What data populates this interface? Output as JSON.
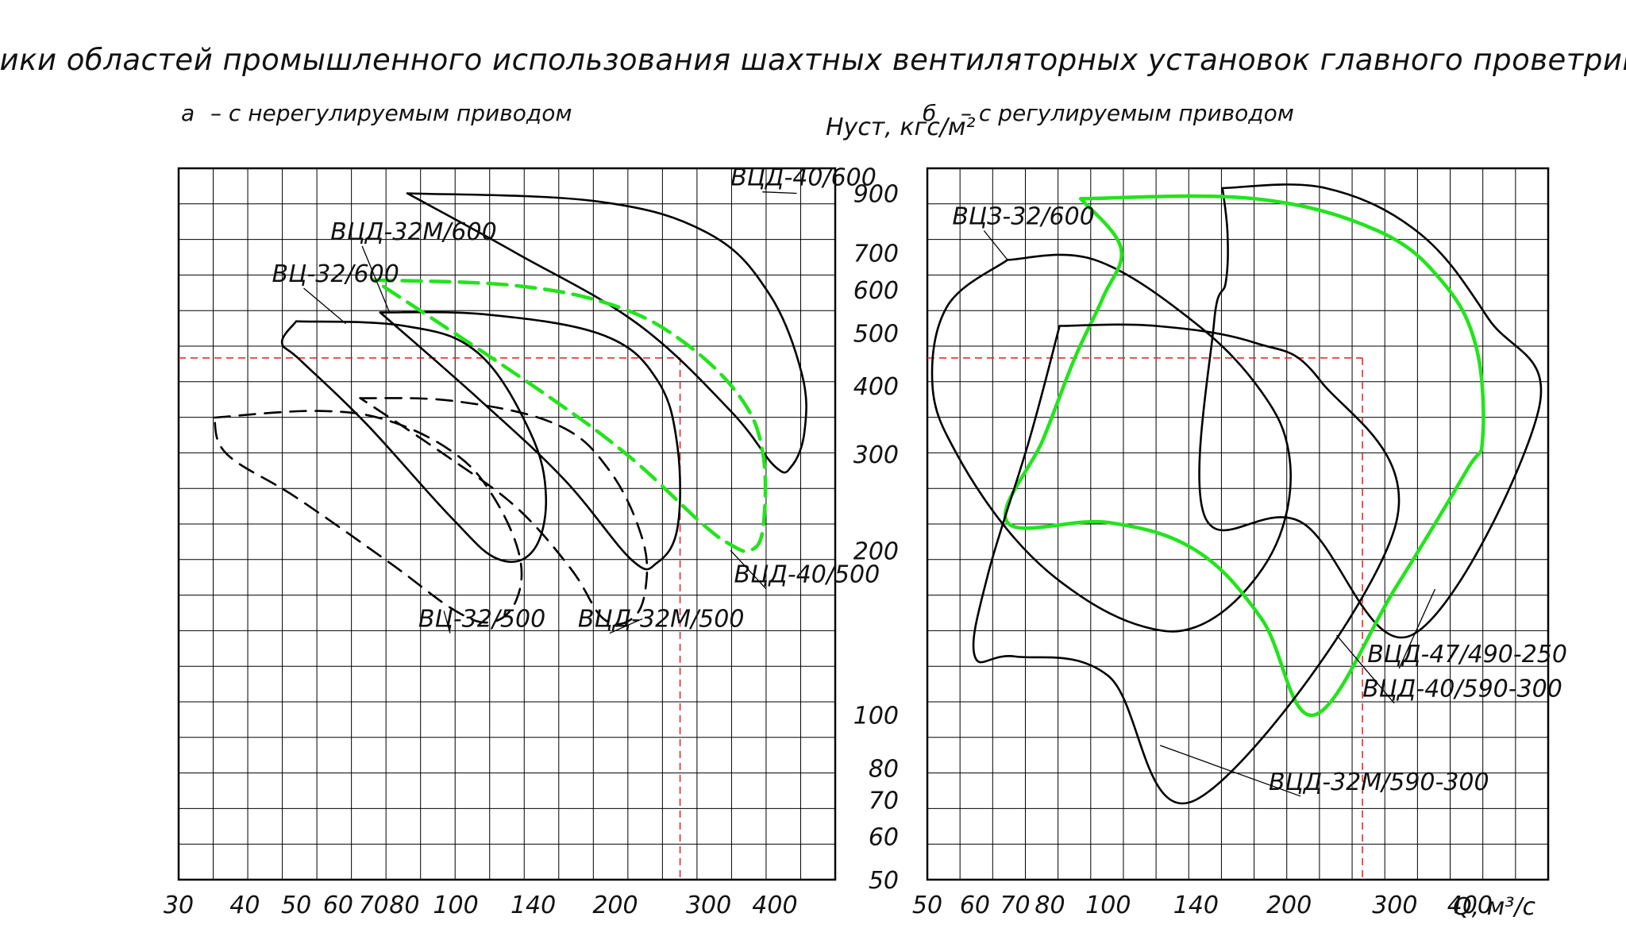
{
  "title": "Графики областей промышленного использования шахтных вентиляторных установок главного проветривания",
  "colors": {
    "background": "#ffffff",
    "grid": "#000000",
    "curve": "#000000",
    "highlight": "#22e41c",
    "guide": "#e02020"
  },
  "chart_data": [
    {
      "type": "line",
      "id": "a",
      "subtitle_letter": "а",
      "subtitle": "– с нерегулируемым приводом",
      "xscale": "log",
      "yscale": "log",
      "xlim": [
        30,
        520
      ],
      "ylim": [
        50,
        1000
      ],
      "x_tick_labels": [
        "30",
        "40",
        "50",
        "60",
        "70",
        "80",
        "100",
        "140",
        "200",
        "300",
        "400"
      ],
      "x_ticks": [
        30,
        40,
        50,
        60,
        70,
        80,
        100,
        140,
        200,
        300,
        400
      ],
      "guide_point": {
        "x": 265,
        "y": 450
      },
      "series": [
        {
          "name": "ВЦД-40/600",
          "style": "solid",
          "color": "#000000",
          "label_at": {
            "x": 330,
            "y": 930
          },
          "leader_to": {
            "x": 440,
            "y": 900
          },
          "points": [
            [
              81,
              900
            ],
            [
              185,
              870
            ],
            [
              300,
              760
            ],
            [
              390,
              590
            ],
            [
              450,
              420
            ],
            [
              455,
              330
            ],
            [
              430,
              285
            ],
            [
              400,
              285
            ],
            [
              330,
              360
            ],
            [
              220,
              520
            ],
            [
              130,
              700
            ],
            [
              81,
              900
            ]
          ]
        },
        {
          "name": "ВЦД-32М/600",
          "style": "solid",
          "color": "#000000",
          "label_at": {
            "x": 58,
            "y": 740
          },
          "leader_to": {
            "x": 75,
            "y": 545
          },
          "points": [
            [
              72,
              545
            ],
            [
              115,
              540
            ],
            [
              190,
              495
            ],
            [
              240,
              410
            ],
            [
              262,
              310
            ],
            [
              262,
              220
            ],
            [
              240,
              190
            ],
            [
              215,
              192
            ],
            [
              160,
              270
            ],
            [
              110,
              380
            ],
            [
              72,
              545
            ]
          ]
        },
        {
          "name": "ВЦ-32/600",
          "style": "solid",
          "color": "#000000",
          "label_at": {
            "x": 45,
            "y": 620
          },
          "leader_to": {
            "x": 62,
            "y": 520
          },
          "points": [
            [
              50,
              525
            ],
            [
              80,
              515
            ],
            [
              110,
              460
            ],
            [
              138,
              330
            ],
            [
              148,
              250
            ],
            [
              140,
              200
            ],
            [
              120,
              193
            ],
            [
              98,
              230
            ],
            [
              68,
              340
            ],
            [
              51,
              445
            ],
            [
              47,
              480
            ],
            [
              50,
              525
            ]
          ]
        },
        {
          "name": "ВЦД-40/500",
          "style": "dashed",
          "color": "#22e41c",
          "label_at": {
            "x": 335,
            "y": 175
          },
          "leader_to": {
            "x": 330,
            "y": 200
          },
          "points": [
            [
              70,
              625
            ],
            [
              130,
              610
            ],
            [
              200,
              560
            ],
            [
              270,
              480
            ],
            [
              345,
              380
            ],
            [
              380,
              300
            ],
            [
              380,
              220
            ],
            [
              360,
              200
            ],
            [
              330,
              205
            ],
            [
              290,
              225
            ],
            [
              210,
              300
            ],
            [
              140,
              400
            ],
            [
              70,
              625
            ]
          ]
        },
        {
          "name": "ВЦД-32М/500",
          "style": "dashed",
          "color": "#000000",
          "label_at": {
            "x": 170,
            "y": 145
          },
          "leader_to": {
            "x": 225,
            "y": 150
          },
          "points": [
            [
              66,
              380
            ],
            [
              100,
              375
            ],
            [
              155,
              340
            ],
            [
              195,
              280
            ],
            [
              225,
              210
            ],
            [
              228,
              170
            ],
            [
              215,
              150
            ],
            [
              190,
              150
            ],
            [
              165,
              185
            ],
            [
              130,
              240
            ],
            [
              95,
              300
            ],
            [
              66,
              380
            ]
          ]
        },
        {
          "name": "ВЦ-32/500",
          "style": "dashed",
          "color": "#000000",
          "label_at": {
            "x": 85,
            "y": 145
          },
          "leader_to": {
            "x": 95,
            "y": 155
          },
          "points": [
            [
              35,
              350
            ],
            [
              55,
              360
            ],
            [
              75,
              345
            ],
            [
              100,
              300
            ],
            [
              118,
              250
            ],
            [
              132,
              195
            ],
            [
              130,
              162
            ],
            [
              117,
              148
            ],
            [
              100,
              155
            ],
            [
              75,
              190
            ],
            [
              50,
              250
            ],
            [
              37,
              300
            ],
            [
              35,
              350
            ]
          ]
        }
      ]
    },
    {
      "type": "line",
      "id": "b",
      "subtitle_letter": "б",
      "subtitle": "– с регулируемым приводом",
      "ylabel": "Hуст, кгс/м²",
      "xlabel": "Q, м³/с",
      "xscale": "log",
      "yscale": "log",
      "xlim": [
        50,
        540
      ],
      "ylim": [
        50,
        1000
      ],
      "x_tick_labels": [
        "50",
        "60",
        "70",
        "80",
        "100",
        "140",
        "200",
        "300",
        "400"
      ],
      "x_ticks": [
        50,
        60,
        70,
        80,
        100,
        140,
        200,
        300,
        400
      ],
      "y_tick_labels": [
        "900",
        "700",
        "600",
        "500",
        "400",
        "300",
        "200",
        "100",
        "80",
        "70",
        "60",
        "50"
      ],
      "y_ticks": [
        900,
        700,
        600,
        500,
        400,
        300,
        200,
        100,
        80,
        70,
        60,
        50
      ],
      "guide_point": {
        "x": 265,
        "y": 450
      },
      "series": [
        {
          "name": "ВЦЗ-32/600",
          "style": "solid",
          "color": "#000000",
          "label_at": {
            "x": 55,
            "y": 790
          },
          "leader_to": {
            "x": 68,
            "y": 680
          },
          "points": [
            [
              68,
              680
            ],
            [
              95,
              680
            ],
            [
              140,
              520
            ],
            [
              180,
              390
            ],
            [
              200,
              300
            ],
            [
              195,
              220
            ],
            [
              170,
              170
            ],
            [
              140,
              145
            ],
            [
              115,
              145
            ],
            [
              90,
              165
            ],
            [
              70,
              210
            ],
            [
              56,
              300
            ],
            [
              51,
              400
            ],
            [
              54,
              560
            ],
            [
              68,
              680
            ]
          ]
        },
        {
          "name": "ВЦД-47/490-250",
          "style": "solid",
          "color": "#000000",
          "label_at": {
            "x": 270,
            "y": 125
          },
          "leader_to": {
            "x": 350,
            "y": 170
          },
          "points": [
            [
              155,
              920
            ],
            [
              230,
              920
            ],
            [
              330,
              760
            ],
            [
              430,
              530
            ],
            [
              520,
              360
            ],
            [
              320,
              140
            ],
            [
              210,
              225
            ],
            [
              145,
              230
            ],
            [
              150,
              520
            ],
            [
              157,
              620
            ],
            [
              158,
              760
            ],
            [
              155,
              920
            ]
          ]
        },
        {
          "name": "ВЦД-40/590-300",
          "style": "solid",
          "color": "#22e41c",
          "label_at": {
            "x": 265,
            "y": 108
          },
          "leader_to": {
            "x": 240,
            "y": 140
          },
          "points": [
            [
              90,
              880
            ],
            [
              175,
              880
            ],
            [
              280,
              770
            ],
            [
              360,
              620
            ],
            [
              410,
              470
            ],
            [
              420,
              320
            ],
            [
              395,
              280
            ],
            [
              300,
              170
            ],
            [
              220,
              100
            ],
            [
              180,
              150
            ],
            [
              140,
              200
            ],
            [
              100,
              225
            ],
            [
              68,
              225
            ],
            [
              78,
              320
            ],
            [
              88,
              450
            ],
            [
              98,
              580
            ],
            [
              105,
              715
            ],
            [
              90,
              880
            ]
          ]
        },
        {
          "name": "ВЦД-32М/590-300",
          "style": "solid",
          "color": "#000000",
          "label_at": {
            "x": 185,
            "y": 73
          },
          "leader_to": {
            "x": 122,
            "y": 88
          },
          "points": [
            [
              83,
              515
            ],
            [
              120,
              515
            ],
            [
              175,
              480
            ],
            [
              225,
              410
            ],
            [
              300,
              220
            ],
            [
              140,
              70
            ],
            [
              100,
              118
            ],
            [
              70,
              128
            ],
            [
              60,
              128
            ],
            [
              63,
              180
            ],
            [
              74,
              320
            ],
            [
              83,
              515
            ]
          ]
        }
      ]
    }
  ]
}
